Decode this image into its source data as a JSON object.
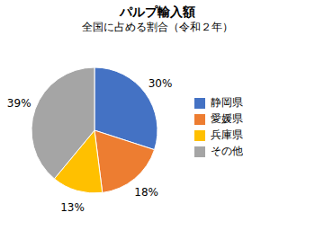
{
  "chart_data": {
    "type": "pie",
    "title": "パルプ輸入額",
    "subtitle": "全国に占める割合（令和２年）",
    "categories": [
      "静岡県",
      "愛媛県",
      "兵庫県",
      "その他"
    ],
    "values": [
      30,
      18,
      13,
      39
    ],
    "value_labels": [
      "30%",
      "18%",
      "13%",
      "39%"
    ],
    "colors": [
      "#4472C4",
      "#ED7D31",
      "#FFC000",
      "#A5A5A5"
    ],
    "data_labels": true,
    "legend": "right"
  }
}
